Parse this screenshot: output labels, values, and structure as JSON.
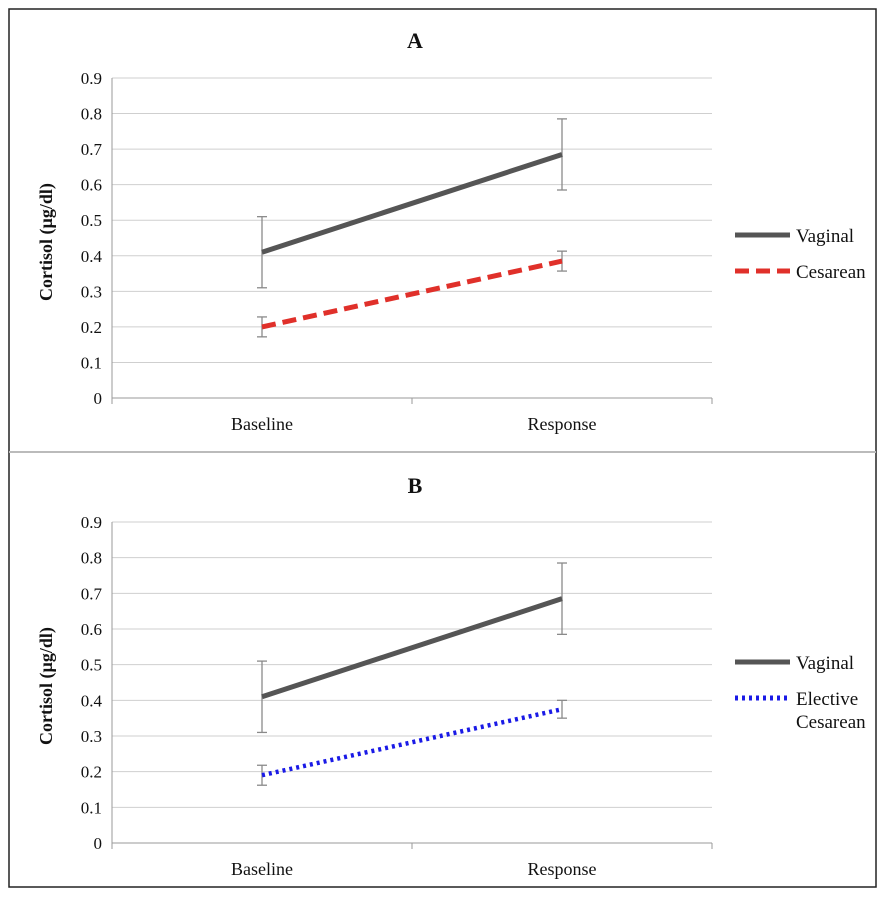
{
  "chart_data": [
    {
      "type": "line",
      "title": "A",
      "xlabel": "",
      "ylabel": "Cortisol (µg/dl)",
      "categories": [
        "Baseline",
        "Response"
      ],
      "ylim": [
        0,
        0.9
      ],
      "yticks": [
        "0",
        "0.1",
        "0.2",
        "0.3",
        "0.4",
        "0.5",
        "0.6",
        "0.7",
        "0.8",
        "0.9"
      ],
      "grid": true,
      "legend_position": "right",
      "series": [
        {
          "name": "Vaginal",
          "values": [
            0.41,
            0.685
          ],
          "error": [
            0.1,
            0.1
          ],
          "color": "#555555",
          "style": "solid"
        },
        {
          "name": "Cesarean",
          "values": [
            0.2,
            0.385
          ],
          "error": [
            0.028,
            0.028
          ],
          "color": "#e0302a",
          "style": "dashed"
        }
      ]
    },
    {
      "type": "line",
      "title": "B",
      "xlabel": "",
      "ylabel": "Cortisol (µg/dl)",
      "categories": [
        "Baseline",
        "Response"
      ],
      "ylim": [
        0,
        0.9
      ],
      "yticks": [
        "0",
        "0.1",
        "0.2",
        "0.3",
        "0.4",
        "0.5",
        "0.6",
        "0.7",
        "0.8",
        "0.9"
      ],
      "grid": true,
      "legend_position": "right",
      "series": [
        {
          "name": "Vaginal",
          "values": [
            0.41,
            0.685
          ],
          "error": [
            0.1,
            0.1
          ],
          "color": "#555555",
          "style": "solid"
        },
        {
          "name": "Elective Cesarean",
          "legend_lines": [
            "Elective",
            "Cesarean"
          ],
          "values": [
            0.19,
            0.375
          ],
          "error": [
            0.028,
            0.025
          ],
          "color": "#1a1ae6",
          "style": "dotted"
        }
      ]
    }
  ]
}
